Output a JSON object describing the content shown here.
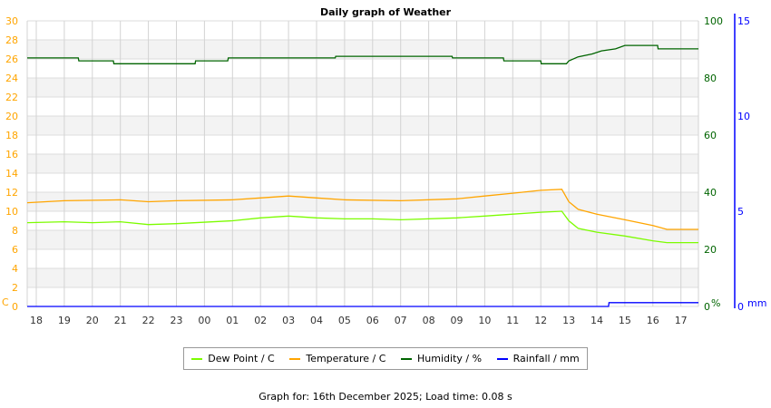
{
  "chart_data": {
    "type": "line",
    "title": "Daily graph of Weather",
    "x_ticks": [
      "18",
      "19",
      "20",
      "21",
      "22",
      "23",
      "00",
      "01",
      "02",
      "03",
      "04",
      "05",
      "06",
      "07",
      "08",
      "09",
      "10",
      "11",
      "12",
      "13",
      "14",
      "15",
      "16",
      "17"
    ],
    "x_range": [
      "17:40",
      "17:40"
    ],
    "grid": true,
    "legend_position": "bottom",
    "axes": {
      "left": {
        "label": "C",
        "range": [
          0,
          30
        ],
        "ticks": [
          0,
          2,
          4,
          6,
          8,
          10,
          12,
          14,
          16,
          18,
          20,
          22,
          24,
          26,
          28,
          30
        ],
        "color": "#ffa500"
      },
      "right1": {
        "label": "%",
        "range": [
          0,
          100
        ],
        "ticks": [
          0,
          20,
          40,
          60,
          80,
          100
        ],
        "color": "#006400"
      },
      "right2": {
        "label": "mm",
        "range": [
          0,
          15
        ],
        "ticks": [
          0,
          5,
          10,
          15
        ],
        "color": "#0000ff"
      }
    },
    "series": [
      {
        "name": "Dew Point / C",
        "axis": "left",
        "color": "#7cfc00",
        "points": [
          [
            "17:40",
            8.8
          ],
          [
            "19:00",
            8.9
          ],
          [
            "20:00",
            8.8
          ],
          [
            "21:00",
            8.9
          ],
          [
            "22:00",
            8.6
          ],
          [
            "23:00",
            8.7
          ],
          [
            "01:00",
            9.0
          ],
          [
            "02:00",
            9.3
          ],
          [
            "03:00",
            9.5
          ],
          [
            "04:00",
            9.3
          ],
          [
            "05:00",
            9.2
          ],
          [
            "06:00",
            9.2
          ],
          [
            "07:00",
            9.1
          ],
          [
            "09:00",
            9.3
          ],
          [
            "10:00",
            9.5
          ],
          [
            "11:00",
            9.7
          ],
          [
            "12:00",
            9.9
          ],
          [
            "12:45",
            10.0
          ],
          [
            "13:00",
            9.0
          ],
          [
            "13:20",
            8.2
          ],
          [
            "14:00",
            7.8
          ],
          [
            "15:00",
            7.4
          ],
          [
            "16:00",
            6.9
          ],
          [
            "16:30",
            6.7
          ],
          [
            "17:40",
            6.7
          ]
        ]
      },
      {
        "name": "Temperature / C",
        "axis": "left",
        "color": "#ffa500",
        "points": [
          [
            "17:40",
            10.9
          ],
          [
            "19:00",
            11.1
          ],
          [
            "21:00",
            11.2
          ],
          [
            "22:00",
            11.0
          ],
          [
            "23:00",
            11.1
          ],
          [
            "01:00",
            11.2
          ],
          [
            "02:00",
            11.4
          ],
          [
            "03:00",
            11.6
          ],
          [
            "04:00",
            11.4
          ],
          [
            "05:00",
            11.2
          ],
          [
            "07:00",
            11.1
          ],
          [
            "09:00",
            11.3
          ],
          [
            "10:00",
            11.6
          ],
          [
            "11:00",
            11.9
          ],
          [
            "12:00",
            12.2
          ],
          [
            "12:45",
            12.3
          ],
          [
            "13:00",
            11.0
          ],
          [
            "13:20",
            10.2
          ],
          [
            "14:00",
            9.7
          ],
          [
            "15:00",
            9.1
          ],
          [
            "16:00",
            8.5
          ],
          [
            "16:30",
            8.1
          ],
          [
            "17:40",
            8.1
          ]
        ]
      },
      {
        "name": "Humidity / %",
        "axis": "right1",
        "color": "#006400",
        "points": [
          [
            "17:40",
            87
          ],
          [
            "19:30",
            87
          ],
          [
            "19:31",
            86
          ],
          [
            "20:45",
            86
          ],
          [
            "20:46",
            85
          ],
          [
            "23:40",
            85
          ],
          [
            "23:41",
            86
          ],
          [
            "00:50",
            86
          ],
          [
            "00:51",
            87
          ],
          [
            "04:40",
            87
          ],
          [
            "04:41",
            87.6
          ],
          [
            "08:50",
            87.6
          ],
          [
            "08:51",
            87
          ],
          [
            "10:40",
            87
          ],
          [
            "10:41",
            86
          ],
          [
            "12:00",
            86
          ],
          [
            "12:01",
            85
          ],
          [
            "12:55",
            85
          ],
          [
            "13:00",
            86
          ],
          [
            "13:20",
            87.4
          ],
          [
            "13:50",
            88.4
          ],
          [
            "14:10",
            89.5
          ],
          [
            "14:40",
            90.2
          ],
          [
            "15:00",
            91.4
          ],
          [
            "16:10",
            91.4
          ],
          [
            "16:11",
            90.2
          ],
          [
            "17:40",
            90.2
          ]
        ]
      },
      {
        "name": "Rainfall / mm",
        "axis": "right2",
        "color": "#0000ff",
        "points": [
          [
            "17:40",
            0
          ],
          [
            "14:25",
            0
          ],
          [
            "14:26",
            0.2
          ],
          [
            "17:40",
            0.2
          ]
        ]
      }
    ]
  },
  "footer": "Graph for: 16th December 2025; Load time: 0.08 s"
}
